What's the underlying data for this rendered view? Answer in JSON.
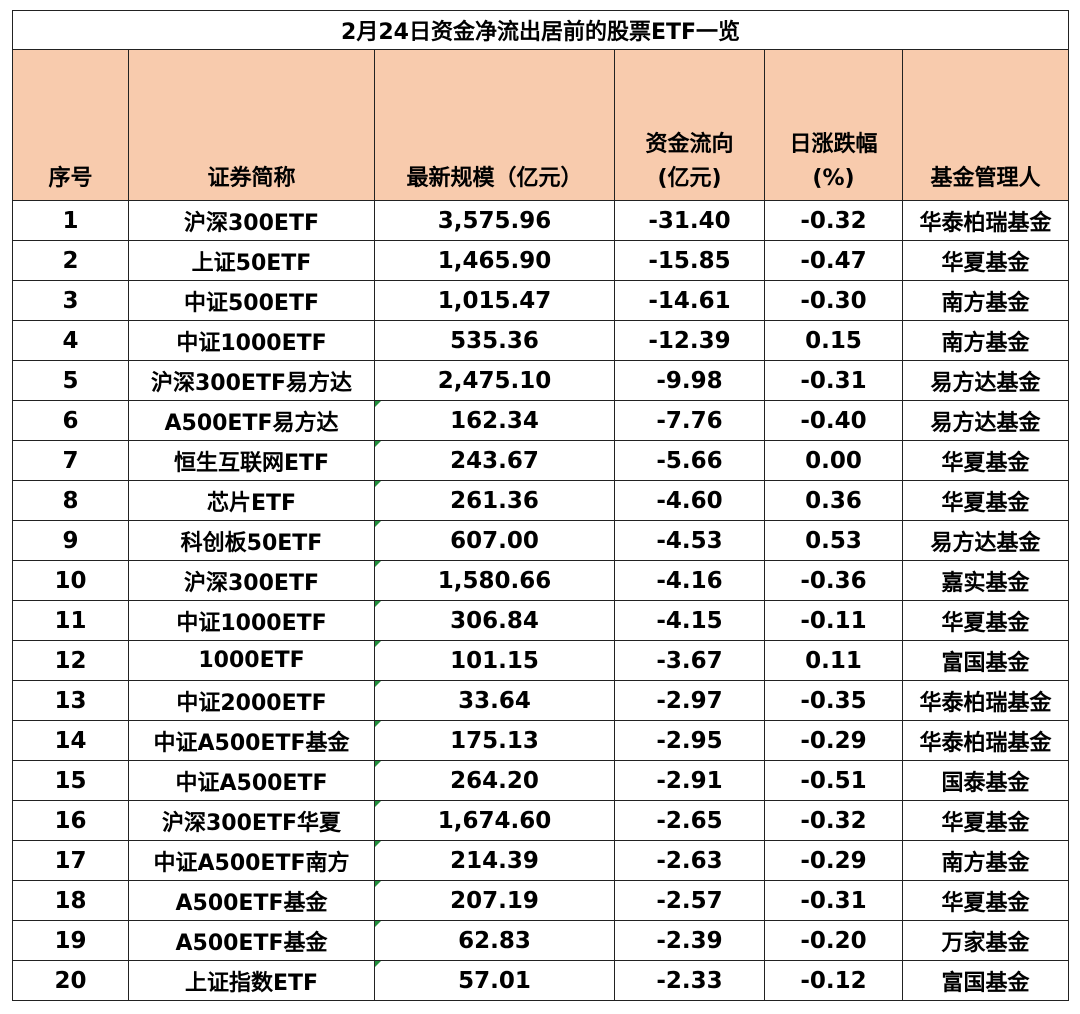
{
  "title": "2月24日资金净流出居前的股票ETF一览",
  "columns": {
    "index": "序号",
    "name": "证券简称",
    "scale": "最新规模（亿元）",
    "flow_line1": "资金流向",
    "flow_line2": "(亿元)",
    "change_line1": "日涨跌幅",
    "change_line2": "(%)",
    "manager": "基金管理人"
  },
  "rows": [
    {
      "index": "1",
      "name": "沪深300ETF",
      "scale": "3,575.96",
      "flow": "-31.40",
      "change": "-0.32",
      "manager": "华泰柏瑞基金"
    },
    {
      "index": "2",
      "name": "上证50ETF",
      "scale": "1,465.90",
      "flow": "-15.85",
      "change": "-0.47",
      "manager": "华夏基金"
    },
    {
      "index": "3",
      "name": "中证500ETF",
      "scale": "1,015.47",
      "flow": "-14.61",
      "change": "-0.30",
      "manager": "南方基金"
    },
    {
      "index": "4",
      "name": "中证1000ETF",
      "scale": "535.36",
      "flow": "-12.39",
      "change": "0.15",
      "manager": "南方基金"
    },
    {
      "index": "5",
      "name": "沪深300ETF易方达",
      "scale": "2,475.10",
      "flow": "-9.98",
      "change": "-0.31",
      "manager": "易方达基金"
    },
    {
      "index": "6",
      "name": "A500ETF易方达",
      "scale": "162.34",
      "flow": "-7.76",
      "change": "-0.40",
      "manager": "易方达基金"
    },
    {
      "index": "7",
      "name": "恒生互联网ETF",
      "scale": "243.67",
      "flow": "-5.66",
      "change": "0.00",
      "manager": "华夏基金"
    },
    {
      "index": "8",
      "name": "芯片ETF",
      "scale": "261.36",
      "flow": "-4.60",
      "change": "0.36",
      "manager": "华夏基金"
    },
    {
      "index": "9",
      "name": "科创板50ETF",
      "scale": "607.00",
      "flow": "-4.53",
      "change": "0.53",
      "manager": "易方达基金"
    },
    {
      "index": "10",
      "name": "沪深300ETF",
      "scale": "1,580.66",
      "flow": "-4.16",
      "change": "-0.36",
      "manager": "嘉实基金"
    },
    {
      "index": "11",
      "name": "中证1000ETF",
      "scale": "306.84",
      "flow": "-4.15",
      "change": "-0.11",
      "manager": "华夏基金"
    },
    {
      "index": "12",
      "name": "1000ETF",
      "scale": "101.15",
      "flow": "-3.67",
      "change": "0.11",
      "manager": "富国基金"
    },
    {
      "index": "13",
      "name": "中证2000ETF",
      "scale": "33.64",
      "flow": "-2.97",
      "change": "-0.35",
      "manager": "华泰柏瑞基金"
    },
    {
      "index": "14",
      "name": "中证A500ETF基金",
      "scale": "175.13",
      "flow": "-2.95",
      "change": "-0.29",
      "manager": "华泰柏瑞基金"
    },
    {
      "index": "15",
      "name": "中证A500ETF",
      "scale": "264.20",
      "flow": "-2.91",
      "change": "-0.51",
      "manager": "国泰基金"
    },
    {
      "index": "16",
      "name": "沪深300ETF华夏",
      "scale": "1,674.60",
      "flow": "-2.65",
      "change": "-0.32",
      "manager": "华夏基金"
    },
    {
      "index": "17",
      "name": "中证A500ETF南方",
      "scale": "214.39",
      "flow": "-2.63",
      "change": "-0.29",
      "manager": "南方基金"
    },
    {
      "index": "18",
      "name": "A500ETF基金",
      "scale": "207.19",
      "flow": "-2.57",
      "change": "-0.31",
      "manager": "华夏基金"
    },
    {
      "index": "19",
      "name": "A500ETF基金",
      "scale": "62.83",
      "flow": "-2.39",
      "change": "-0.20",
      "manager": "万家基金"
    },
    {
      "index": "20",
      "name": "上证指数ETF",
      "scale": "57.01",
      "flow": "-2.33",
      "change": "-0.12",
      "manager": "富国基金"
    }
  ],
  "colors": {
    "header_fill": "#f8cbad",
    "border": "#222222",
    "comment_marker": "#1f8f3a"
  },
  "icons": {
    "cell_marker": "green-corner-triangle-icon"
  }
}
